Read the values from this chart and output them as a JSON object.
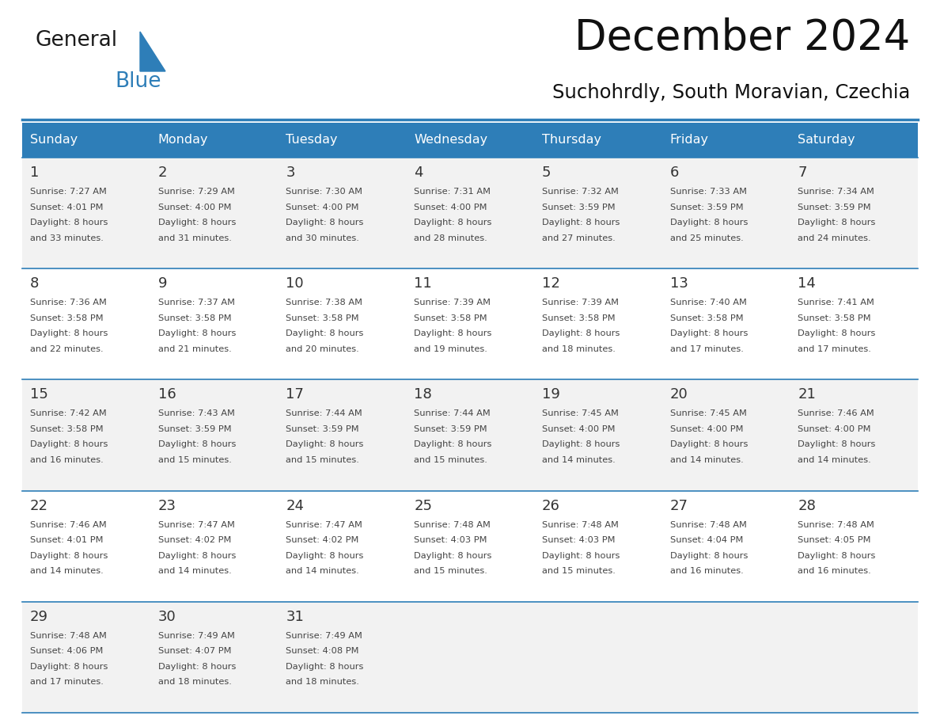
{
  "title": "December 2024",
  "subtitle": "Suchohrdly, South Moravian, Czechia",
  "header_bg_color": "#2E7EB8",
  "header_text_color": "#FFFFFF",
  "day_names": [
    "Sunday",
    "Monday",
    "Tuesday",
    "Wednesday",
    "Thursday",
    "Friday",
    "Saturday"
  ],
  "row_bg_colors": [
    "#F2F2F2",
    "#FFFFFF",
    "#F2F2F2",
    "#FFFFFF",
    "#F2F2F2"
  ],
  "separator_color": "#2E7EB8",
  "day_num_color": "#333333",
  "text_color": "#444444",
  "logo_general_color": "#1a1a1a",
  "logo_blue_color": "#2E7EB8",
  "logo_triangle_color": "#2E7EB8",
  "calendar_data": [
    [
      {
        "day": 1,
        "sunrise": "7:27 AM",
        "sunset": "4:01 PM",
        "daylight_suffix": "33 minutes"
      },
      {
        "day": 2,
        "sunrise": "7:29 AM",
        "sunset": "4:00 PM",
        "daylight_suffix": "31 minutes"
      },
      {
        "day": 3,
        "sunrise": "7:30 AM",
        "sunset": "4:00 PM",
        "daylight_suffix": "30 minutes"
      },
      {
        "day": 4,
        "sunrise": "7:31 AM",
        "sunset": "4:00 PM",
        "daylight_suffix": "28 minutes"
      },
      {
        "day": 5,
        "sunrise": "7:32 AM",
        "sunset": "3:59 PM",
        "daylight_suffix": "27 minutes"
      },
      {
        "day": 6,
        "sunrise": "7:33 AM",
        "sunset": "3:59 PM",
        "daylight_suffix": "25 minutes"
      },
      {
        "day": 7,
        "sunrise": "7:34 AM",
        "sunset": "3:59 PM",
        "daylight_suffix": "24 minutes"
      }
    ],
    [
      {
        "day": 8,
        "sunrise": "7:36 AM",
        "sunset": "3:58 PM",
        "daylight_suffix": "22 minutes"
      },
      {
        "day": 9,
        "sunrise": "7:37 AM",
        "sunset": "3:58 PM",
        "daylight_suffix": "21 minutes"
      },
      {
        "day": 10,
        "sunrise": "7:38 AM",
        "sunset": "3:58 PM",
        "daylight_suffix": "20 minutes"
      },
      {
        "day": 11,
        "sunrise": "7:39 AM",
        "sunset": "3:58 PM",
        "daylight_suffix": "19 minutes"
      },
      {
        "day": 12,
        "sunrise": "7:39 AM",
        "sunset": "3:58 PM",
        "daylight_suffix": "18 minutes"
      },
      {
        "day": 13,
        "sunrise": "7:40 AM",
        "sunset": "3:58 PM",
        "daylight_suffix": "17 minutes"
      },
      {
        "day": 14,
        "sunrise": "7:41 AM",
        "sunset": "3:58 PM",
        "daylight_suffix": "17 minutes"
      }
    ],
    [
      {
        "day": 15,
        "sunrise": "7:42 AM",
        "sunset": "3:58 PM",
        "daylight_suffix": "16 minutes"
      },
      {
        "day": 16,
        "sunrise": "7:43 AM",
        "sunset": "3:59 PM",
        "daylight_suffix": "15 minutes"
      },
      {
        "day": 17,
        "sunrise": "7:44 AM",
        "sunset": "3:59 PM",
        "daylight_suffix": "15 minutes"
      },
      {
        "day": 18,
        "sunrise": "7:44 AM",
        "sunset": "3:59 PM",
        "daylight_suffix": "15 minutes"
      },
      {
        "day": 19,
        "sunrise": "7:45 AM",
        "sunset": "4:00 PM",
        "daylight_suffix": "14 minutes"
      },
      {
        "day": 20,
        "sunrise": "7:45 AM",
        "sunset": "4:00 PM",
        "daylight_suffix": "14 minutes"
      },
      {
        "day": 21,
        "sunrise": "7:46 AM",
        "sunset": "4:00 PM",
        "daylight_suffix": "14 minutes"
      }
    ],
    [
      {
        "day": 22,
        "sunrise": "7:46 AM",
        "sunset": "4:01 PM",
        "daylight_suffix": "14 minutes"
      },
      {
        "day": 23,
        "sunrise": "7:47 AM",
        "sunset": "4:02 PM",
        "daylight_suffix": "14 minutes"
      },
      {
        "day": 24,
        "sunrise": "7:47 AM",
        "sunset": "4:02 PM",
        "daylight_suffix": "14 minutes"
      },
      {
        "day": 25,
        "sunrise": "7:48 AM",
        "sunset": "4:03 PM",
        "daylight_suffix": "15 minutes"
      },
      {
        "day": 26,
        "sunrise": "7:48 AM",
        "sunset": "4:03 PM",
        "daylight_suffix": "15 minutes"
      },
      {
        "day": 27,
        "sunrise": "7:48 AM",
        "sunset": "4:04 PM",
        "daylight_suffix": "16 minutes"
      },
      {
        "day": 28,
        "sunrise": "7:48 AM",
        "sunset": "4:05 PM",
        "daylight_suffix": "16 minutes"
      }
    ],
    [
      {
        "day": 29,
        "sunrise": "7:48 AM",
        "sunset": "4:06 PM",
        "daylight_suffix": "17 minutes"
      },
      {
        "day": 30,
        "sunrise": "7:49 AM",
        "sunset": "4:07 PM",
        "daylight_suffix": "18 minutes"
      },
      {
        "day": 31,
        "sunrise": "7:49 AM",
        "sunset": "4:08 PM",
        "daylight_suffix": "18 minutes"
      },
      null,
      null,
      null,
      null
    ]
  ]
}
